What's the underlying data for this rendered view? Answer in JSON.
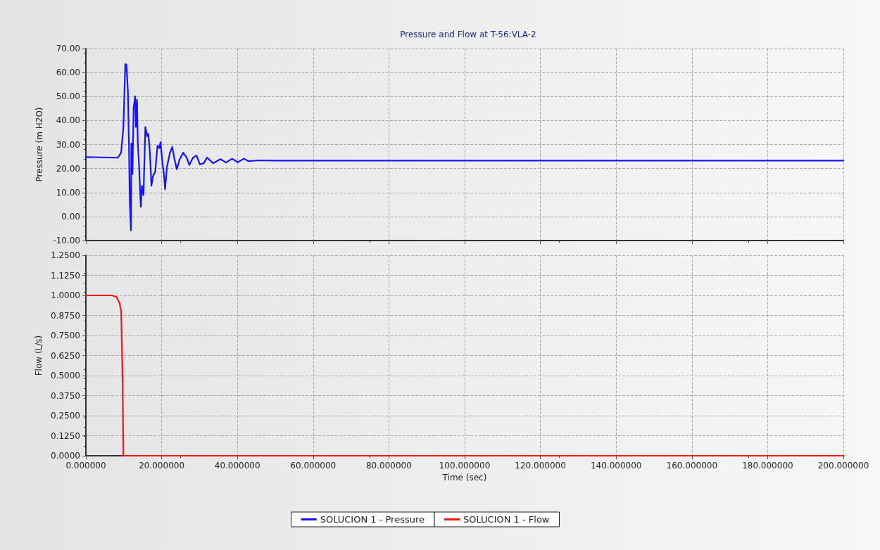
{
  "chart_data": [
    {
      "type": "line",
      "title": "Pressure and Flow at T-56:VLA-2",
      "ylabel": "Pressure (m H2O)",
      "xlim": [
        0,
        200
      ],
      "xticks": [
        {
          "value": 0,
          "label": null
        },
        {
          "value": 20,
          "label": null
        },
        {
          "value": 40,
          "label": null
        },
        {
          "value": 60,
          "label": null
        },
        {
          "value": 80,
          "label": null
        },
        {
          "value": 100,
          "label": null
        },
        {
          "value": 120,
          "label": null
        },
        {
          "value": 140,
          "label": null
        },
        {
          "value": 160,
          "label": null
        },
        {
          "value": 180,
          "label": null
        },
        {
          "value": 200,
          "label": null
        }
      ],
      "ylim": [
        -10,
        70
      ],
      "yticks": [
        {
          "value": -10,
          "label": "-10.00"
        },
        {
          "value": 0,
          "label": "0.00"
        },
        {
          "value": 10,
          "label": "10.00"
        },
        {
          "value": 20,
          "label": "20.00"
        },
        {
          "value": 30,
          "label": "30.00"
        },
        {
          "value": 40,
          "label": "40.00"
        },
        {
          "value": 50,
          "label": "50.00"
        },
        {
          "value": 60,
          "label": "60.00"
        },
        {
          "value": 70,
          "label": "70.00"
        }
      ],
      "tick_labels": "y",
      "grid": true,
      "legend": "bottom",
      "marker": "none",
      "line_style": "solid",
      "series": [
        {
          "name": "SOLUCION 1 - Pressure",
          "color": "#1414ff",
          "x": [
            0,
            0.3,
            8.4,
            9.3,
            9.9,
            10.4,
            10.7,
            11.1,
            11.4,
            11.6,
            11.9,
            12.0,
            12.3,
            12.6,
            13.0,
            13.2,
            13.5,
            13.7,
            14.0,
            14.5,
            14.8,
            15.2,
            15.7,
            16.2,
            16.5,
            16.9,
            17.3,
            17.7,
            18.3,
            18.9,
            19.4,
            19.7,
            20.2,
            20.6,
            20.9,
            21.4,
            22.2,
            22.8,
            23.3,
            24.0,
            24.7,
            25.7,
            26.6,
            27.3,
            28.3,
            29.2,
            30.1,
            31.1,
            32.0,
            33.6,
            35.5,
            37.0,
            38.6,
            40.1,
            41.7,
            42.9,
            45.7,
            50,
            200
          ],
          "values": [
            24.6,
            24.8,
            24.5,
            26.6,
            37.3,
            63.5,
            63.3,
            52,
            26.6,
            5,
            -5.8,
            30.5,
            17.7,
            45.2,
            50.1,
            37.3,
            48.6,
            30.5,
            22.6,
            4,
            12.8,
            8.9,
            37.3,
            33.4,
            34.4,
            26.6,
            12.8,
            16.8,
            18.7,
            29.5,
            28.5,
            31,
            22.6,
            17.7,
            11.4,
            20.7,
            26.6,
            29,
            24.6,
            19.7,
            23.6,
            26.6,
            24.6,
            21.5,
            24.6,
            25.4,
            21.7,
            22.2,
            24.6,
            22.2,
            23.9,
            22.5,
            24.1,
            22.6,
            24.1,
            23.1,
            23.4,
            23.3,
            23.3
          ]
        }
      ]
    },
    {
      "type": "line",
      "xlabel": "Time (sec)",
      "ylabel": "Flow (L/s)",
      "xlim": [
        0,
        200
      ],
      "xticks": [
        {
          "value": 0,
          "label": "0.000000"
        },
        {
          "value": 20,
          "label": "20.000000"
        },
        {
          "value": 40,
          "label": "40.000000"
        },
        {
          "value": 60,
          "label": "60.000000"
        },
        {
          "value": 80,
          "label": "80.000000"
        },
        {
          "value": 100,
          "label": "100.000000"
        },
        {
          "value": 120,
          "label": "120.000000"
        },
        {
          "value": 140,
          "label": "140.000000"
        },
        {
          "value": 160,
          "label": "160.000000"
        },
        {
          "value": 180,
          "label": "180.000000"
        },
        {
          "value": 200,
          "label": "200.000000"
        }
      ],
      "ylim": [
        0,
        1.25
      ],
      "yticks": [
        {
          "value": 0,
          "label": "0.0000"
        },
        {
          "value": 0.125,
          "label": "0.1250"
        },
        {
          "value": 0.25,
          "label": "0.2500"
        },
        {
          "value": 0.375,
          "label": "0.3750"
        },
        {
          "value": 0.5,
          "label": "0.5000"
        },
        {
          "value": 0.625,
          "label": "0.6250"
        },
        {
          "value": 0.75,
          "label": "0.7500"
        },
        {
          "value": 0.875,
          "label": "0.8750"
        },
        {
          "value": 1,
          "label": "1.0000"
        },
        {
          "value": 1.125,
          "label": "1.1250"
        },
        {
          "value": 1.25,
          "label": "1.2500"
        }
      ],
      "grid": true,
      "legend": "bottom",
      "marker": "none",
      "line_style": "solid",
      "series": [
        {
          "name": "SOLUCION 1 - Flow",
          "color": "#ff1414",
          "x": [
            0,
            6.8,
            8.1,
            8.9,
            9.3,
            9.5,
            9.7,
            9.9,
            200
          ],
          "values": [
            1.0,
            1.0,
            0.99,
            0.95,
            0.9,
            0.7,
            0.45,
            0,
            0
          ]
        }
      ]
    }
  ]
}
